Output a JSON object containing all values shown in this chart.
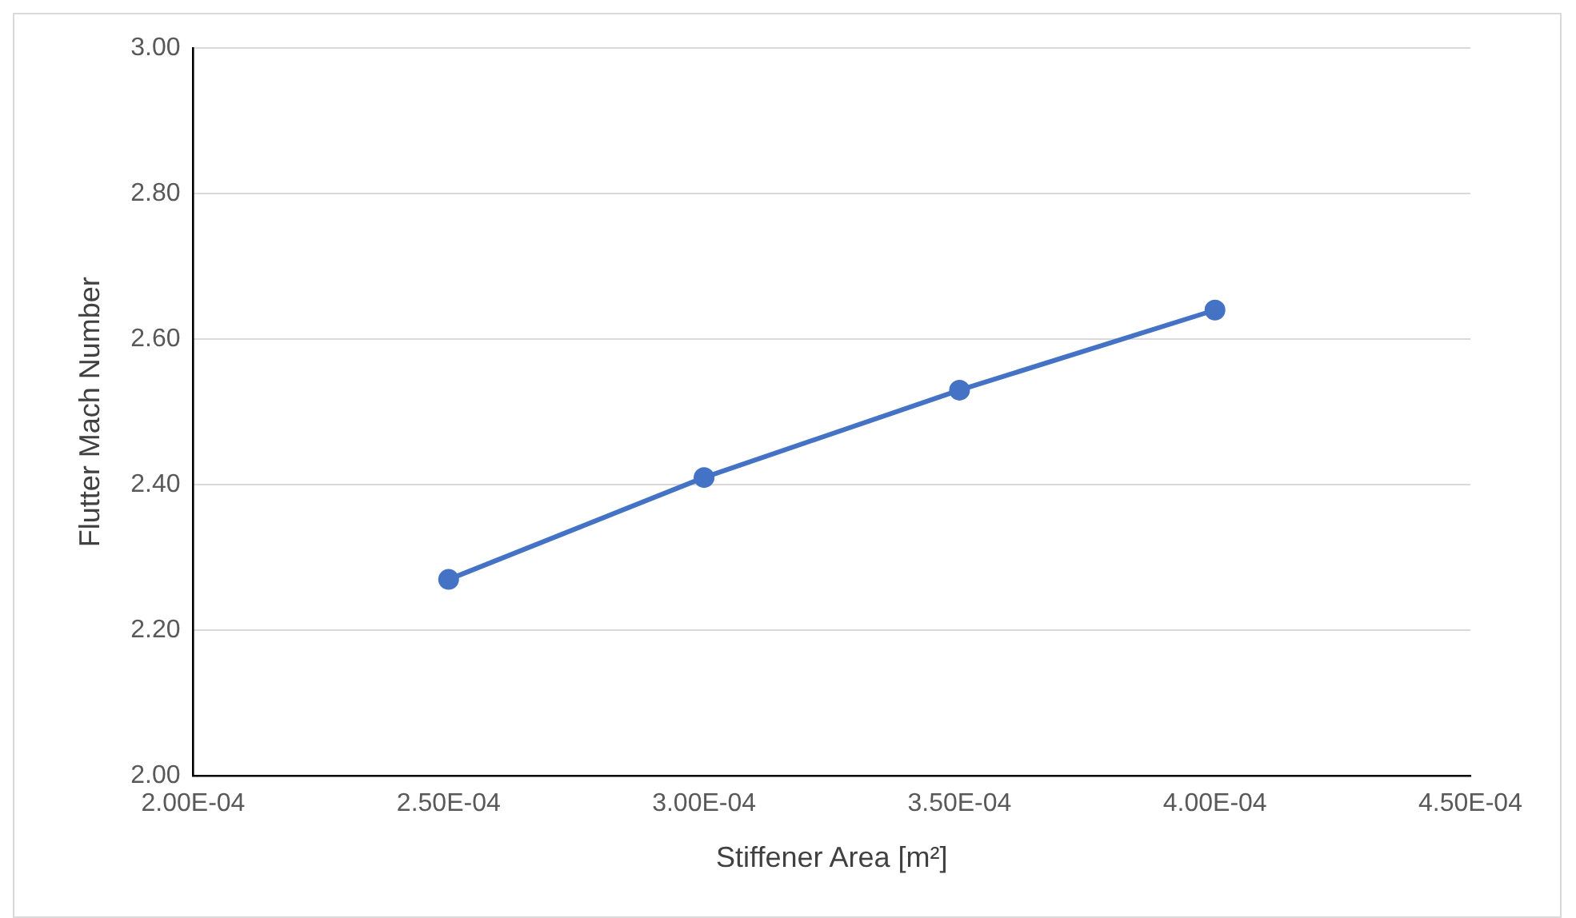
{
  "chart_data": {
    "type": "line",
    "xlabel": "Stiffener Area [m²]",
    "ylabel": "Flutter Mach Number",
    "x": [
      0.00025,
      0.0003,
      0.00035,
      0.0004
    ],
    "series": [
      {
        "color": "#4472c4",
        "values": [
          2.27,
          2.41,
          2.53,
          2.64
        ]
      }
    ],
    "xlim": [
      0.0002,
      0.00045
    ],
    "xticks": [
      {
        "value": 0.0002,
        "label": "2.00E-04"
      },
      {
        "value": 0.00025,
        "label": "2.50E-04"
      },
      {
        "value": 0.0003,
        "label": "3.00E-04"
      },
      {
        "value": 0.00035,
        "label": "3.50E-04"
      },
      {
        "value": 0.0004,
        "label": "4.00E-04"
      },
      {
        "value": 0.00045,
        "label": "4.50E-04"
      }
    ],
    "ylim": [
      2,
      3
    ],
    "yticks": [
      {
        "value": 2,
        "label": "2.00"
      },
      {
        "value": 2.2,
        "label": "2.20"
      },
      {
        "value": 2.4,
        "label": "2.40"
      },
      {
        "value": 2.6,
        "label": "2.60"
      },
      {
        "value": 2.8,
        "label": "2.80"
      },
      {
        "value": 3,
        "label": "3.00"
      }
    ],
    "grid": "y",
    "marker": "circle",
    "line_style": "solid"
  }
}
